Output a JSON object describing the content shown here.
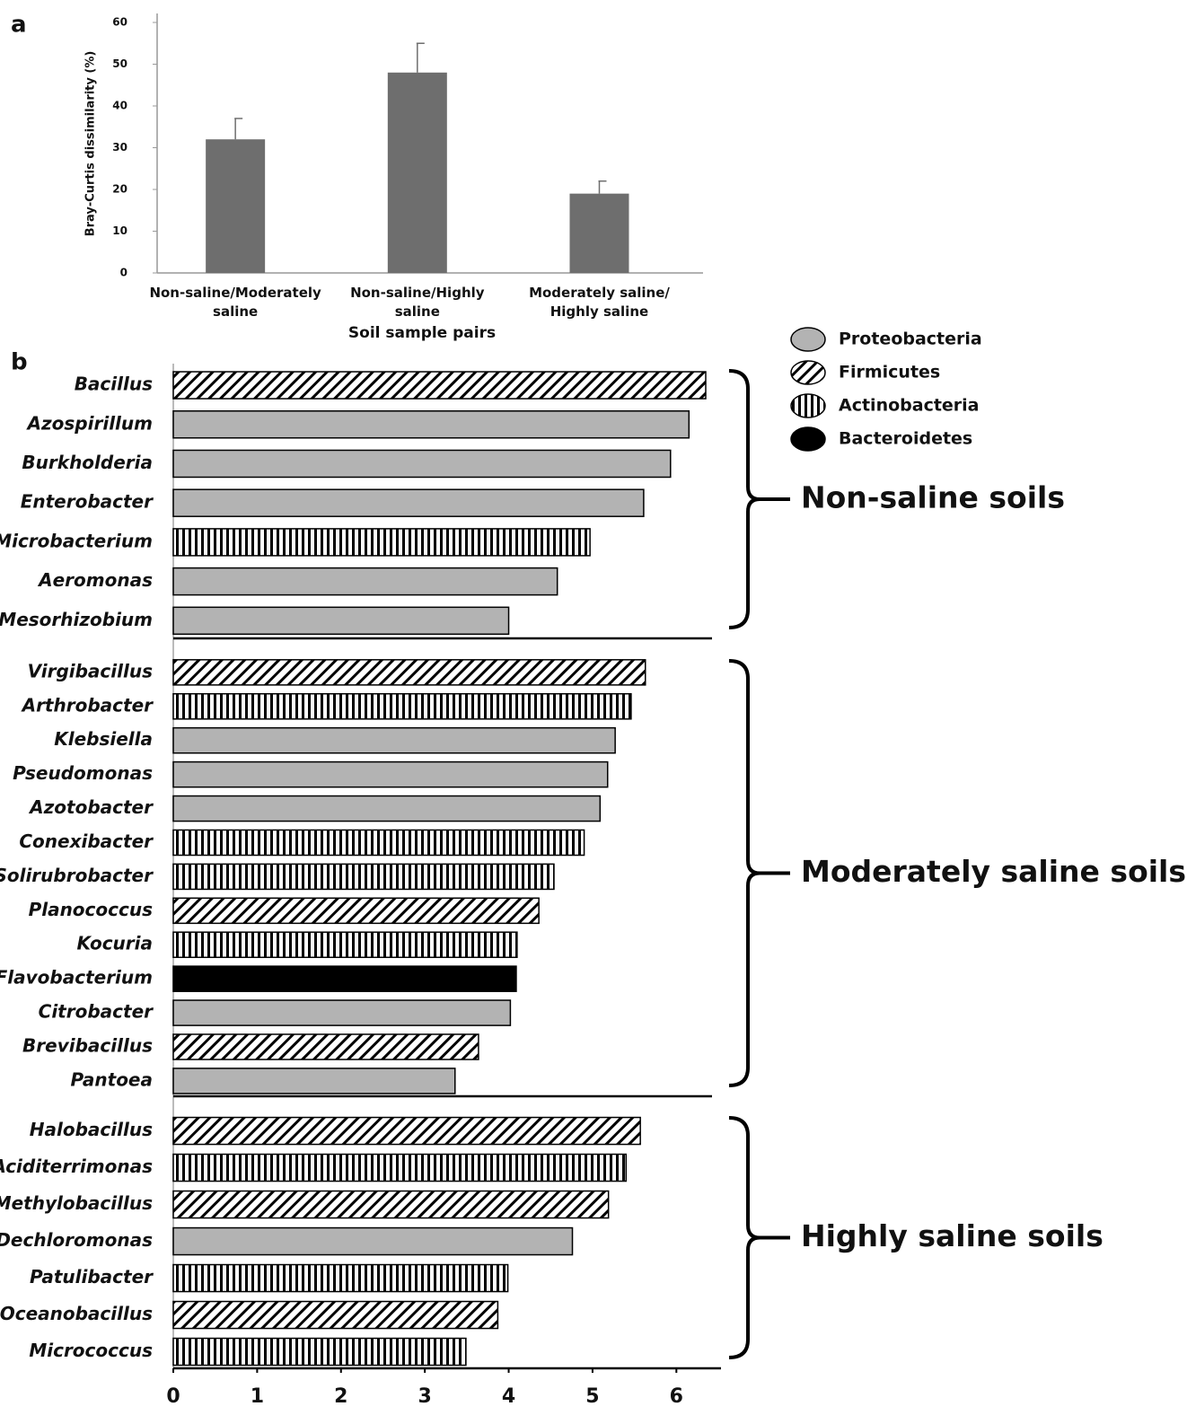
{
  "chart_data": [
    {
      "type": "bar",
      "panel": "a",
      "ylabel": "Bray-Curtis dissimilarity (%)",
      "xlabel": "Soil sample pairs",
      "categories": [
        "Non-saline/Moderately saline",
        "Non-saline/Highly saline",
        "Moderately saline/ Highly saline"
      ],
      "values": [
        32,
        48,
        19
      ],
      "errors": [
        5,
        7,
        3
      ],
      "color": "#6e6e6e",
      "ylim": [
        0,
        60
      ],
      "yticks": [
        0,
        10,
        20,
        30,
        40,
        50,
        60
      ]
    },
    {
      "type": "hbar-groups",
      "panel": "b",
      "xlim": [
        0,
        6.5
      ],
      "xticks": [
        0,
        1,
        2,
        3,
        4,
        5,
        6
      ],
      "legend": [
        {
          "name": "Proteobacteria",
          "pattern": "solid",
          "color": "#b3b3b3"
        },
        {
          "name": "Firmicutes",
          "pattern": "diagonal",
          "color": "#000000"
        },
        {
          "name": "Actinobacteria",
          "pattern": "vertical",
          "color": "#000000"
        },
        {
          "name": "Bacteroidetes",
          "pattern": "solid",
          "color": "#000000"
        }
      ],
      "groups": [
        {
          "name": "Non-saline soils",
          "categories": [
            "Bacillus",
            "Azospirillum",
            "Burkholderia",
            "Enterobacter",
            "Microbacterium",
            "Aeromonas",
            "Mesorhizobium"
          ],
          "values": [
            6.35,
            6.15,
            5.93,
            5.61,
            4.97,
            4.58,
            4.0
          ],
          "phylum": [
            "Firmicutes",
            "Proteobacteria",
            "Proteobacteria",
            "Proteobacteria",
            "Actinobacteria",
            "Proteobacteria",
            "Proteobacteria"
          ]
        },
        {
          "name": "Moderately saline soils",
          "categories": [
            "Virgibacillus",
            "Arthrobacter",
            "Klebsiella",
            "Pseudomonas",
            "Azotobacter",
            "Conexibacter",
            "Solirubrobacter",
            "Planococcus",
            "Kocuria",
            "Flavobacterium",
            "Citrobacter",
            "Brevibacillus",
            "Pantoea"
          ],
          "values": [
            5.63,
            5.46,
            5.27,
            5.18,
            5.09,
            4.9,
            4.54,
            4.36,
            4.1,
            4.09,
            4.02,
            3.64,
            3.36
          ],
          "phylum": [
            "Firmicutes",
            "Actinobacteria",
            "Proteobacteria",
            "Proteobacteria",
            "Proteobacteria",
            "Actinobacteria",
            "Actinobacteria",
            "Firmicutes",
            "Actinobacteria",
            "Bacteroidetes",
            "Proteobacteria",
            "Firmicutes",
            "Proteobacteria"
          ]
        },
        {
          "name": "Highly saline soils",
          "categories": [
            "Halobacillus",
            "Aciditerrimonas",
            "Methylobacillus",
            "Dechloromonas",
            "Patulibacter",
            "Oceanobacillus",
            "Micrococcus"
          ],
          "values": [
            5.57,
            5.4,
            5.19,
            4.76,
            3.99,
            3.87,
            3.49
          ],
          "phylum": [
            "Firmicutes",
            "Actinobacteria",
            "Firmicutes",
            "Proteobacteria",
            "Actinobacteria",
            "Firmicutes",
            "Actinobacteria"
          ]
        }
      ]
    }
  ]
}
